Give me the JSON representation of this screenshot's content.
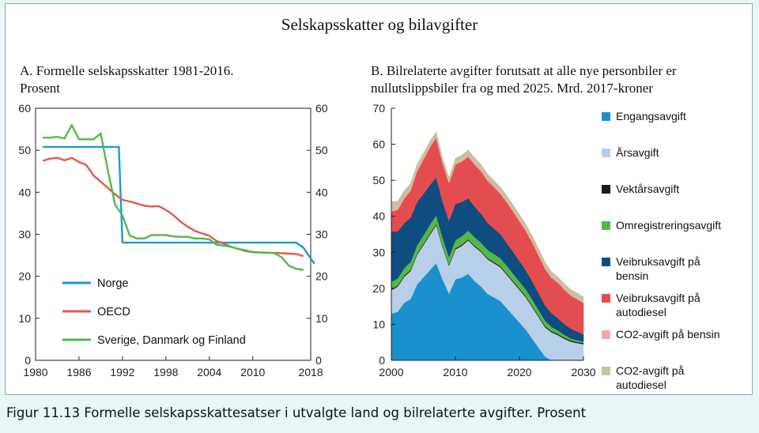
{
  "figure": {
    "title": "Selskapsskatter og bilavgifter",
    "caption": "Figur 11.13 Formelle selskapsskattesatser i utvalgte land og bilrelaterte avgifter. Prosent"
  },
  "panel_a": {
    "title_line1": "A.  Formelle selskapsskatter 1981-2016.",
    "title_line2": "Prosent"
  },
  "panel_b": {
    "title_line1": "B.  Bilrelaterte avgifter forutsatt at alle nye personbiler er",
    "title_line2": "nullutslippsbiler fra og med 2025. Mrd. 2017-kroner"
  },
  "chart_data": [
    {
      "type": "line",
      "title": "A.  Formelle selskapsskatter 1981-2016. Prosent",
      "xlim": [
        1980,
        2018
      ],
      "ylim": [
        0,
        60
      ],
      "xticks": [
        "1980",
        "1986",
        "1992",
        "1998",
        "2004",
        "2010",
        "2018"
      ],
      "yticks": [
        "0",
        "10",
        "20",
        "30",
        "40",
        "50",
        "60"
      ],
      "y2ticks": [
        "0",
        "10",
        "20",
        "30",
        "40",
        "50",
        "60"
      ],
      "legend_position": "bottom-left",
      "grid": false,
      "series": [
        {
          "name": "Norge",
          "color": "#1a9ad6",
          "x": [
            1981,
            1991.5,
            1992,
            2016,
            2017,
            2018.5
          ],
          "y": [
            50.8,
            50.8,
            28,
            28,
            26.8,
            23
          ]
        },
        {
          "name": "OECD",
          "color": "#e35850",
          "x": [
            1981,
            1982,
            1983,
            1984,
            1985,
            1986,
            1987,
            1988,
            1989,
            1990,
            1991,
            1992,
            1993,
            1994,
            1995,
            1996,
            1997,
            1998,
            1999,
            2000,
            2001,
            2002,
            2003,
            2004,
            2005,
            2006,
            2007,
            2008,
            2009,
            2010,
            2011,
            2012,
            2013,
            2014,
            2015,
            2016,
            2017
          ],
          "y": [
            47.5,
            48,
            48.2,
            47.6,
            48.2,
            47.2,
            46.5,
            44,
            42.5,
            41,
            39.5,
            38.2,
            37.8,
            37.3,
            36.8,
            36.6,
            36.7,
            35.8,
            34.6,
            33,
            31.8,
            30.8,
            30.2,
            29.6,
            28.4,
            27.8,
            27,
            26.5,
            26,
            25.8,
            25.7,
            25.6,
            25.6,
            25.5,
            25.4,
            25.3,
            24.8
          ]
        },
        {
          "name": "Sverige, Danmark og Finland",
          "color": "#55b848",
          "x": [
            1981,
            1982,
            1983,
            1984,
            1985,
            1986,
            1987,
            1988,
            1989,
            1990,
            1991,
            1992,
            1993,
            1994,
            1995,
            1996,
            1997,
            1998,
            1999,
            2000,
            2001,
            2002,
            2003,
            2004,
            2005,
            2006,
            2007,
            2008,
            2009,
            2010,
            2011,
            2012,
            2013,
            2014,
            2015,
            2016,
            2017
          ],
          "y": [
            53,
            53,
            53.2,
            52.8,
            56,
            52.6,
            52.6,
            52.6,
            54,
            45,
            37,
            34.5,
            29.7,
            29,
            29,
            29.8,
            29.8,
            29.8,
            29.5,
            29.4,
            29.4,
            29,
            29,
            28.8,
            27.5,
            27.3,
            27,
            26.5,
            26.2,
            25.7,
            25.7,
            25.6,
            25.5,
            24.5,
            22.5,
            21.8,
            21.5
          ]
        }
      ]
    },
    {
      "type": "area",
      "title": "B.  Bilrelaterte avgifter forutsatt at alle nye personbiler er nullutslippsbiler fra og med 2025. Mrd. 2017-kroner",
      "stacked": true,
      "xlim": [
        2000,
        2030
      ],
      "ylim": [
        0,
        70
      ],
      "xticks": [
        "2000",
        "2010",
        "2020",
        "2030"
      ],
      "yticks": [
        "0",
        "10",
        "20",
        "30",
        "40",
        "50",
        "60",
        "70"
      ],
      "legend_position": "right",
      "grid": false,
      "x": [
        2000,
        2001,
        2002,
        2003,
        2004,
        2005,
        2006,
        2007,
        2008,
        2009,
        2010,
        2011,
        2012,
        2013,
        2014,
        2015,
        2016,
        2017,
        2018,
        2019,
        2020,
        2021,
        2022,
        2023,
        2024,
        2025,
        2026,
        2027,
        2028,
        2029,
        2030
      ],
      "series": [
        {
          "name": "Engangsavgift",
          "color": "#1a90cf",
          "values": [
            13,
            13.5,
            16,
            17,
            21,
            23,
            25,
            27,
            22.5,
            18.5,
            22.5,
            23,
            24,
            22,
            20.5,
            18.5,
            17.5,
            16.5,
            14.5,
            12.5,
            10.5,
            8.5,
            6,
            3.5,
            1,
            0,
            0,
            0,
            0,
            0,
            0
          ]
        },
        {
          "name": "Årsavgift",
          "color": "#b7cfe9",
          "values": [
            6.5,
            7,
            7.2,
            7.8,
            8.3,
            9,
            9.8,
            10.5,
            9,
            7.8,
            8.3,
            8.8,
            9.3,
            9.5,
            9.6,
            9.6,
            9.5,
            9.4,
            9.3,
            9.2,
            9.1,
            9,
            8.8,
            8.5,
            8.2,
            7.8,
            7,
            6,
            5.2,
            4.8,
            4.5
          ]
        },
        {
          "name": "Vektårsavgift",
          "color": "#1b1b1b",
          "values": [
            0.3,
            0.3,
            0.3,
            0.3,
            0.3,
            0.3,
            0.3,
            0.3,
            0.3,
            0.3,
            0.3,
            0.3,
            0.3,
            0.3,
            0.3,
            0.3,
            0.3,
            0.3,
            0.3,
            0.3,
            0.3,
            0.3,
            0.3,
            0.3,
            0.3,
            0.3,
            0.3,
            0.3,
            0.3,
            0.3,
            0.3
          ]
        },
        {
          "name": "Omregistreringsavgift",
          "color": "#54b748",
          "values": [
            2,
            2,
            2.1,
            2.2,
            2.3,
            2.4,
            2.5,
            2.5,
            2.3,
            2.1,
            2.3,
            2.4,
            2.4,
            2.4,
            2.3,
            2.3,
            2.3,
            2.2,
            2.2,
            2.1,
            2,
            1.9,
            1.8,
            1.7,
            1.5,
            1.2,
            1,
            0.8,
            0.6,
            0.5,
            0.4
          ]
        },
        {
          "name": "Veibruksavgift på bensin",
          "color": "#0f4d80",
          "values": [
            14,
            13,
            12.5,
            12.3,
            12,
            11.5,
            11,
            10.5,
            10,
            10,
            10,
            9.5,
            9,
            8.5,
            8,
            7.5,
            7,
            6.7,
            6.3,
            6,
            5.7,
            5.3,
            5,
            4.6,
            4.2,
            3.8,
            3.4,
            3,
            2.7,
            2.4,
            2
          ]
        },
        {
          "name": "Veibruksavgift på autodiesel",
          "color": "#e44d4f",
          "values": [
            5.5,
            6,
            6.8,
            7.5,
            8.5,
            9.5,
            10.5,
            11,
            10.5,
            10.5,
            11,
            11.2,
            11.5,
            11.7,
            11.8,
            11.7,
            11.5,
            11.2,
            11.3,
            11.2,
            11,
            10.9,
            10.8,
            10.5,
            10.2,
            9.8,
            9.8,
            9.5,
            9.2,
            9,
            8.7
          ]
        },
        {
          "name": "CO2-avgift på bensin",
          "color": "#f3aaa9",
          "values": [
            0.4,
            0.4,
            0.4,
            0.4,
            0.4,
            0.4,
            0.4,
            0.4,
            0.4,
            0.4,
            0.4,
            0.4,
            0.4,
            0.4,
            0.4,
            0.4,
            0.4,
            0.4,
            0.4,
            0.4,
            0.4,
            0.4,
            0.4,
            0.4,
            0.4,
            0.3,
            0.3,
            0.3,
            0.3,
            0.3,
            0.3
          ]
        },
        {
          "name": "CO2-avgift på autodiesel",
          "color": "#c8c1a0",
          "values": [
            2.3,
            2,
            1.8,
            1.6,
            1.5,
            1.4,
            1.3,
            1.3,
            1.2,
            1.2,
            1.3,
            1.4,
            1.5,
            1.5,
            1.5,
            1.5,
            1.5,
            1.5,
            1.5,
            1.5,
            1.5,
            1.5,
            1.5,
            1.5,
            1.5,
            1.4,
            1.4,
            1.4,
            1.4,
            1.4,
            1.4
          ]
        }
      ]
    }
  ]
}
